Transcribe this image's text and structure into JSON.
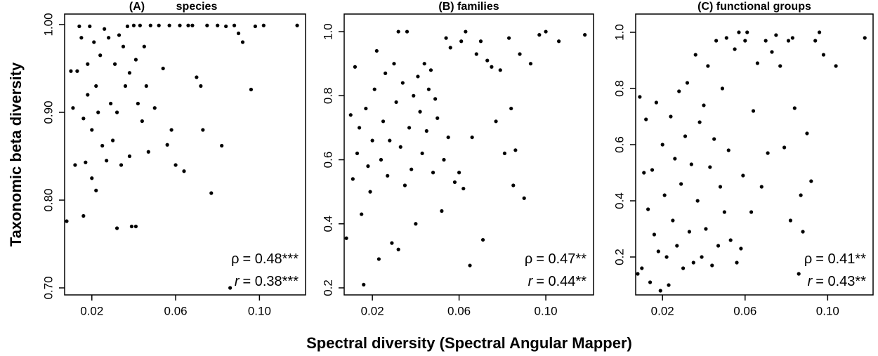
{
  "xlabel": "Spectral diversity (Spectral Angular Mapper)",
  "ylabel": "Taxonomic beta diversity",
  "chart_data": [
    {
      "type": "scatter",
      "title": "(A)",
      "subtitle": "species",
      "color": "#000000",
      "xlim": [
        0.007,
        0.122
      ],
      "xticks": [
        0.02,
        0.06,
        {
          "value": 0.1,
          "label": "0.10"
        }
      ],
      "ylim": [
        0.692,
        1.012
      ],
      "yticks": [
        {
          "value": 0.7,
          "label": "0.70"
        },
        {
          "value": 0.8,
          "label": "0.80"
        },
        {
          "value": 0.9,
          "label": "0.90"
        },
        {
          "value": 1,
          "label": "1.00"
        }
      ],
      "x": [
        0.008,
        0.01,
        0.011,
        0.012,
        0.013,
        0.014,
        0.015,
        0.016,
        0.016,
        0.017,
        0.018,
        0.018,
        0.019,
        0.02,
        0.02,
        0.021,
        0.022,
        0.022,
        0.023,
        0.024,
        0.025,
        0.026,
        0.027,
        0.028,
        0.029,
        0.03,
        0.031,
        0.032,
        0.032,
        0.033,
        0.034,
        0.035,
        0.036,
        0.037,
        0.038,
        0.038,
        0.039,
        0.04,
        0.041,
        0.041,
        0.042,
        0.043,
        0.044,
        0.045,
        0.046,
        0.047,
        0.048,
        0.05,
        0.052,
        0.054,
        0.056,
        0.057,
        0.058,
        0.06,
        0.062,
        0.064,
        0.066,
        0.068,
        0.07,
        0.072,
        0.073,
        0.075,
        0.077,
        0.08,
        0.082,
        0.084,
        0.086,
        0.088,
        0.09,
        0.092,
        0.096,
        0.098,
        0.102,
        0.118
      ],
      "values": [
        0.776,
        0.947,
        0.905,
        0.84,
        0.947,
        0.998,
        0.985,
        0.782,
        0.893,
        0.843,
        0.955,
        0.92,
        0.998,
        0.88,
        0.825,
        0.98,
        0.811,
        0.93,
        0.9,
        0.965,
        0.862,
        0.995,
        0.845,
        0.985,
        0.91,
        0.868,
        0.955,
        0.768,
        0.9,
        0.988,
        0.84,
        0.975,
        0.93,
        0.998,
        0.85,
        0.945,
        0.77,
        0.999,
        0.77,
        0.96,
        0.91,
        0.999,
        0.89,
        0.975,
        0.93,
        0.855,
        0.999,
        0.905,
        0.999,
        0.95,
        0.863,
        0.999,
        0.88,
        0.84,
        0.999,
        0.833,
        0.999,
        0.999,
        0.94,
        0.93,
        0.88,
        0.999,
        0.808,
        0.999,
        0.862,
        0.998,
        0.7,
        0.999,
        0.99,
        0.98,
        0.926,
        0.998,
        0.999,
        0.999
      ],
      "annotations": [
        {
          "symbol": "ρ",
          "text": "= 0.48***"
        },
        {
          "symbol": "r",
          "text": "= 0.38***"
        }
      ]
    },
    {
      "type": "scatter",
      "title": "(B) families",
      "color": "#000000",
      "xlim": [
        0.007,
        0.122
      ],
      "xticks": [
        0.02,
        0.06,
        {
          "value": 0.1,
          "label": "0.10"
        }
      ],
      "ylim": [
        0.178,
        1.055
      ],
      "yticks": [
        0.2,
        0.4,
        0.6,
        0.8,
        {
          "value": 1,
          "label": "1.0"
        }
      ],
      "x": [
        0.008,
        0.01,
        0.011,
        0.012,
        0.013,
        0.014,
        0.015,
        0.016,
        0.017,
        0.018,
        0.019,
        0.02,
        0.021,
        0.022,
        0.023,
        0.024,
        0.025,
        0.026,
        0.027,
        0.028,
        0.029,
        0.03,
        0.031,
        0.032,
        0.032,
        0.033,
        0.034,
        0.035,
        0.036,
        0.037,
        0.038,
        0.039,
        0.04,
        0.041,
        0.042,
        0.043,
        0.044,
        0.045,
        0.046,
        0.047,
        0.048,
        0.049,
        0.05,
        0.052,
        0.053,
        0.054,
        0.055,
        0.056,
        0.058,
        0.06,
        0.061,
        0.062,
        0.063,
        0.065,
        0.066,
        0.068,
        0.07,
        0.071,
        0.073,
        0.075,
        0.077,
        0.079,
        0.081,
        0.083,
        0.084,
        0.085,
        0.086,
        0.088,
        0.09,
        0.093,
        0.097,
        0.1,
        0.106,
        0.118
      ],
      "values": [
        0.355,
        0.74,
        0.54,
        0.89,
        0.62,
        0.7,
        0.43,
        0.21,
        0.76,
        0.58,
        0.5,
        0.66,
        0.82,
        0.94,
        0.29,
        0.6,
        0.72,
        0.87,
        0.55,
        0.66,
        0.34,
        0.9,
        0.78,
        0.32,
        1.0,
        0.64,
        0.84,
        0.52,
        1.0,
        0.7,
        0.57,
        0.8,
        0.4,
        0.86,
        0.75,
        0.62,
        0.9,
        0.69,
        0.82,
        0.88,
        0.56,
        0.79,
        0.73,
        0.44,
        0.6,
        0.98,
        0.67,
        0.95,
        0.53,
        0.56,
        0.97,
        0.51,
        1.0,
        0.27,
        0.67,
        0.93,
        0.97,
        0.35,
        0.91,
        0.89,
        0.72,
        0.88,
        0.62,
        0.98,
        0.76,
        0.52,
        0.63,
        0.93,
        0.48,
        0.9,
        0.99,
        1.0,
        0.97,
        0.99
      ],
      "annotations": [
        {
          "symbol": "ρ",
          "text": "= 0.47**"
        },
        {
          "symbol": "r",
          "text": "= 0.44**"
        }
      ]
    },
    {
      "type": "scatter",
      "title": "(C) functional groups",
      "color": "#000000",
      "xlim": [
        0.007,
        0.122
      ],
      "xticks": [
        0.02,
        0.06,
        {
          "value": 0.1,
          "label": "0.10"
        }
      ],
      "ylim": [
        0.065,
        1.065
      ],
      "yticks": [
        0.2,
        0.4,
        0.6,
        0.8,
        {
          "value": 1,
          "label": "1.0"
        }
      ],
      "x": [
        0.008,
        0.009,
        0.01,
        0.011,
        0.012,
        0.013,
        0.014,
        0.015,
        0.016,
        0.017,
        0.018,
        0.019,
        0.02,
        0.021,
        0.022,
        0.023,
        0.024,
        0.025,
        0.026,
        0.027,
        0.028,
        0.029,
        0.03,
        0.031,
        0.032,
        0.033,
        0.034,
        0.035,
        0.036,
        0.037,
        0.038,
        0.039,
        0.04,
        0.041,
        0.042,
        0.043,
        0.044,
        0.045,
        0.046,
        0.047,
        0.048,
        0.049,
        0.05,
        0.051,
        0.052,
        0.053,
        0.055,
        0.056,
        0.057,
        0.058,
        0.059,
        0.06,
        0.061,
        0.063,
        0.064,
        0.066,
        0.068,
        0.07,
        0.071,
        0.073,
        0.075,
        0.077,
        0.079,
        0.081,
        0.082,
        0.083,
        0.084,
        0.086,
        0.087,
        0.088,
        0.09,
        0.092,
        0.094,
        0.096,
        0.098,
        0.104,
        0.118
      ],
      "values": [
        0.14,
        0.77,
        0.16,
        0.5,
        0.69,
        0.37,
        0.11,
        0.51,
        0.28,
        0.75,
        0.22,
        0.08,
        0.6,
        0.42,
        0.2,
        0.1,
        0.7,
        0.33,
        0.55,
        0.24,
        0.79,
        0.46,
        0.16,
        0.63,
        0.82,
        0.29,
        0.53,
        0.18,
        0.92,
        0.4,
        0.68,
        0.2,
        0.74,
        0.3,
        0.88,
        0.52,
        0.17,
        0.62,
        0.97,
        0.24,
        0.45,
        0.8,
        0.36,
        0.98,
        0.58,
        0.26,
        0.94,
        0.18,
        1.0,
        0.23,
        0.49,
        0.97,
        1.0,
        0.36,
        0.72,
        0.89,
        0.45,
        0.97,
        0.57,
        0.93,
        0.99,
        0.88,
        0.59,
        0.97,
        0.33,
        0.98,
        0.73,
        0.14,
        0.42,
        0.29,
        0.64,
        0.47,
        0.97,
        1.0,
        0.92,
        0.88,
        0.98
      ],
      "annotations": [
        {
          "symbol": "ρ",
          "text": "= 0.41**"
        },
        {
          "symbol": "r",
          "text": "= 0.43**"
        }
      ]
    }
  ]
}
